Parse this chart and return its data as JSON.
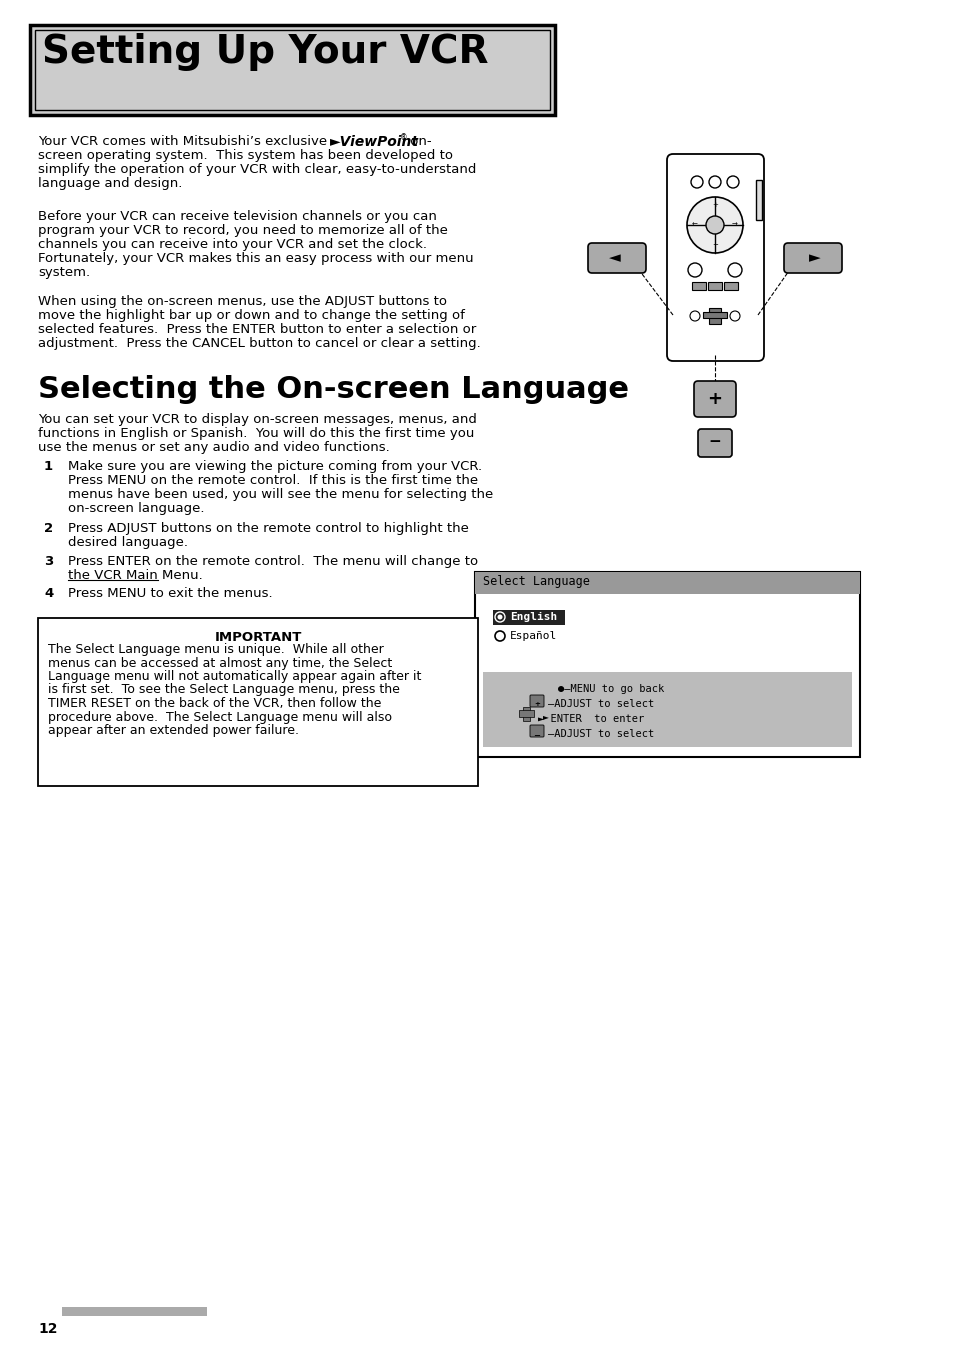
{
  "page_bg": "#ffffff",
  "title_box_bg": "#cccccc",
  "title_text": "Setting Up Your VCR",
  "title_fontsize": 28,
  "section_title": "Selecting the On-screen Language",
  "section_fontsize": 22,
  "body_fontsize": 9.5,
  "page_number": "12",
  "screen_title": "Select Language",
  "screen_title_bg": "#999999",
  "screen_option1": "English",
  "screen_option2": "Español",
  "screen_hint_bg": "#bbbbbb",
  "important_title": "IMPORTANT"
}
